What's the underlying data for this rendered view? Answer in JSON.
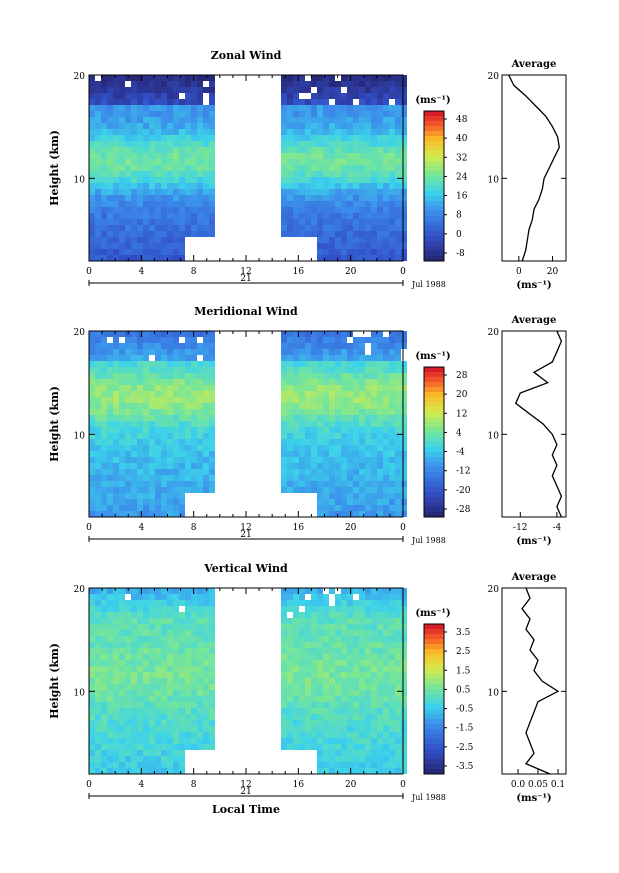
{
  "chart_data": [
    {
      "type": "heatmap",
      "title": "Zonal Wind",
      "ylabel": "Height (km)",
      "xlabel": "",
      "yticks": [
        "20",
        "10"
      ],
      "xticks": [
        "0",
        "4",
        "8",
        "12",
        "16",
        "20",
        "0"
      ],
      "date_day": "21",
      "date_label": "Jul 1988",
      "colorbar_unit": "(ms⁻¹)",
      "colorbar_ticks": [
        "48",
        "40",
        "32",
        "24",
        "16",
        "8",
        "0",
        "-8"
      ],
      "colorbar_range": [
        -8,
        52
      ],
      "field": {
        "low": 2,
        "mid": 12,
        "peak": 26,
        "jet_height_km": 12,
        "top_band": 0
      },
      "average": {
        "title": "Average",
        "xlabel": "(ms⁻¹)",
        "xticks": [
          "0",
          "20"
        ],
        "xlim": [
          -10,
          28
        ],
        "yticks": [
          "20",
          "10"
        ],
        "height_km": [
          2,
          3,
          4,
          5,
          6,
          7,
          8,
          9,
          10,
          11,
          12,
          13,
          14,
          15,
          16,
          17,
          18,
          19,
          20
        ],
        "values": [
          2,
          4,
          5,
          6,
          8,
          9,
          12,
          14,
          15,
          18,
          21,
          24,
          23,
          20,
          16,
          10,
          4,
          -3,
          -6
        ]
      }
    },
    {
      "type": "heatmap",
      "title": "Meridional Wind",
      "ylabel": "Height (km)",
      "xlabel": "",
      "yticks": [
        "20",
        "10"
      ],
      "xticks": [
        "0",
        "4",
        "8",
        "12",
        "16",
        "20",
        "0"
      ],
      "date_day": "21",
      "date_label": "Jul 1988",
      "colorbar_unit": "(ms⁻¹)",
      "colorbar_ticks": [
        "28",
        "20",
        "12",
        "4",
        "-4",
        "-12",
        "-20",
        "-28"
      ],
      "colorbar_range": [
        -32,
        32
      ],
      "field": {
        "low": -10,
        "mid": -4,
        "peak": 8,
        "jet_height_km": 14,
        "top_band": -8
      },
      "average": {
        "title": "Average",
        "xlabel": "(ms⁻¹)",
        "xticks": [
          "-12",
          "-4"
        ],
        "xlim": [
          -16,
          -2
        ],
        "yticks": [
          "20",
          "10"
        ],
        "height_km": [
          2,
          3,
          4,
          5,
          6,
          7,
          8,
          9,
          10,
          11,
          12,
          13,
          14,
          15,
          16,
          17,
          18,
          19,
          20
        ],
        "values": [
          -3,
          -4,
          -3,
          -4,
          -5,
          -4,
          -5,
          -4,
          -5,
          -7,
          -10,
          -13,
          -12,
          -6,
          -9,
          -5,
          -4,
          -3,
          -4
        ]
      }
    },
    {
      "type": "heatmap",
      "title": "Vertical Wind",
      "ylabel": "Height (km)",
      "xlabel": "Local Time",
      "yticks": [
        "20",
        "10"
      ],
      "xticks": [
        "0",
        "4",
        "8",
        "12",
        "16",
        "20",
        "0"
      ],
      "date_day": "21",
      "date_label": "Jul 1988",
      "colorbar_unit": "(ms⁻¹)",
      "colorbar_ticks": [
        "3.5",
        "2.5",
        "1.5",
        "0.5",
        "-0.5",
        "-1.5",
        "-2.5",
        "-3.5"
      ],
      "colorbar_range": [
        -4,
        4
      ],
      "field": {
        "low": -0.5,
        "mid": 0.2,
        "peak": 0.6,
        "jet_height_km": 12,
        "top_band": 0.1
      },
      "average": {
        "title": "Average",
        "xlabel": "(ms⁻¹)",
        "xticks": [
          "0.0",
          "0.05",
          "0.1"
        ],
        "xlim": [
          -0.04,
          0.12
        ],
        "yticks": [
          "20",
          "10"
        ],
        "height_km": [
          2,
          3,
          4,
          5,
          6,
          7,
          8,
          9,
          10,
          11,
          12,
          13,
          14,
          15,
          16,
          17,
          18,
          19,
          20
        ],
        "values": [
          0.08,
          0.02,
          0.04,
          0.03,
          0.02,
          0.03,
          0.04,
          0.05,
          0.1,
          0.06,
          0.04,
          0.05,
          0.03,
          0.04,
          0.02,
          0.03,
          0.01,
          0.03,
          0.02
        ]
      }
    }
  ]
}
